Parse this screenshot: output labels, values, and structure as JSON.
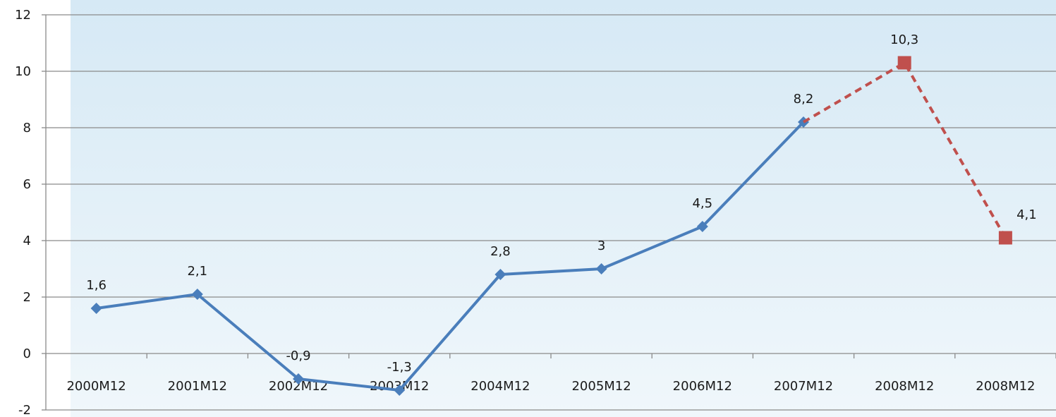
{
  "chart_data": {
    "type": "line",
    "categories": [
      "2000M12",
      "2001M12",
      "2002M12",
      "2003M12",
      "2004M12",
      "2005M12",
      "2006M12",
      "2007M12",
      "2008M12",
      "2008M12"
    ],
    "series": [
      {
        "values": [
          1.6,
          2.1,
          -0.9,
          -1.3,
          2.8,
          3,
          4.5,
          8.2,
          null,
          null
        ],
        "labels": [
          "1,6",
          "2,1",
          "-0,9",
          "-1,3",
          "2,8",
          "3",
          "4,5",
          "8,2",
          "",
          ""
        ],
        "color": "#4a7ebb",
        "line_style": "solid",
        "marker": "diamond"
      },
      {
        "values": [
          null,
          null,
          null,
          null,
          null,
          null,
          null,
          8.2,
          10.3,
          4.1
        ],
        "labels": [
          "",
          "",
          "",
          "",
          "",
          "",
          "",
          "",
          "10,3",
          "4,1"
        ],
        "color": "#c0504d",
        "line_style": "dashed",
        "marker": "square"
      }
    ],
    "y_ticks": [
      "-2",
      "0",
      "2",
      "4",
      "6",
      "8",
      "10",
      "12"
    ],
    "ylim": [
      -2,
      12
    ],
    "grid": "horizontal",
    "legend": "none",
    "background_colors": [
      "#d6e9f5",
      "#f0f7fb"
    ]
  }
}
